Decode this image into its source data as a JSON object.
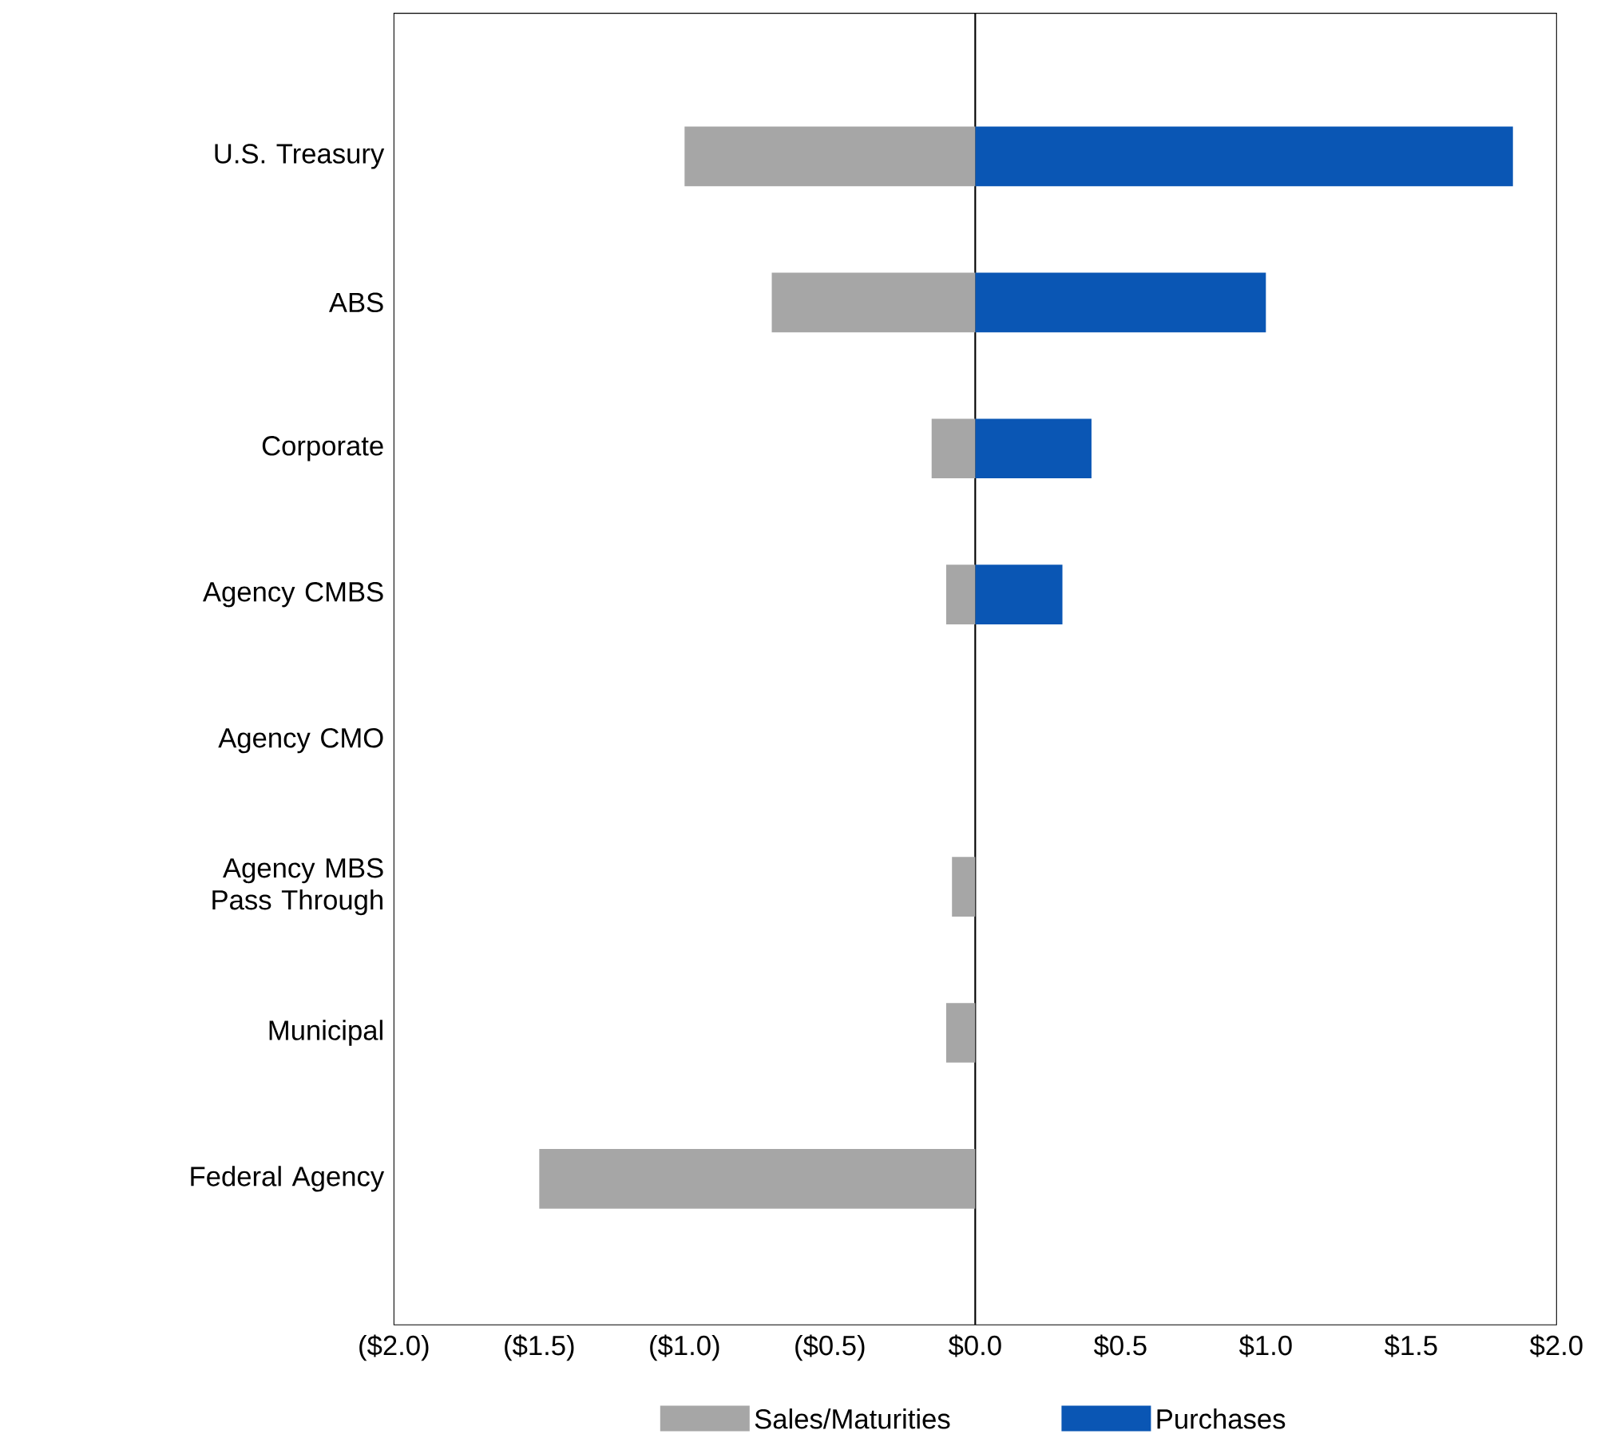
{
  "chart_data": {
    "type": "bar",
    "orientation": "horizontal",
    "categories": [
      "U.S. Treasury",
      "ABS",
      "Corporate",
      "Agency CMBS",
      "Agency CMO",
      "Agency MBS Pass Through",
      "Municipal",
      "Federal Agency"
    ],
    "series": [
      {
        "name": "Sales/Maturities",
        "color": "#a6a6a6",
        "values": [
          -1.0,
          -0.7,
          -0.15,
          -0.1,
          0,
          -0.08,
          -0.1,
          -1.5
        ]
      },
      {
        "name": "Purchases",
        "color": "#0a56b4",
        "values": [
          1.85,
          1.0,
          0.4,
          0.3,
          0,
          0,
          0,
          0
        ]
      }
    ],
    "xlim": [
      -2.0,
      2.0
    ],
    "xticks": [
      {
        "value": -2.0,
        "label": "($2.0)"
      },
      {
        "value": -1.5,
        "label": "($1.5)"
      },
      {
        "value": -1.0,
        "label": "($1.0)"
      },
      {
        "value": -0.5,
        "label": "($0.5)"
      },
      {
        "value": 0,
        "label": "$0.0"
      },
      {
        "value": 0.5,
        "label": "$0.5"
      },
      {
        "value": 1.0,
        "label": "$1.0"
      },
      {
        "value": 1.5,
        "label": "$1.5"
      },
      {
        "value": 2.0,
        "label": "$2.0"
      }
    ],
    "ref_lines": [
      {
        "axis": "x",
        "value": 0,
        "color": "#000000"
      }
    ],
    "stacked": true,
    "legend": "bottom"
  }
}
